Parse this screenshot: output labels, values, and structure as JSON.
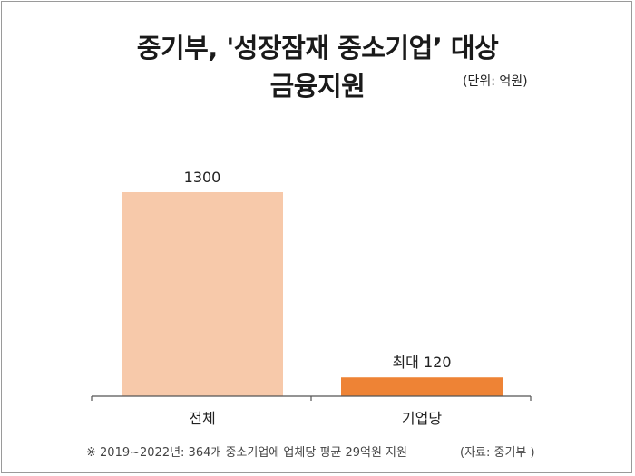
{
  "title_line1": "중기부, '성장잠재 중소기업’ 대상",
  "title_line2": "금융지원",
  "unit": "(단위: 억원)",
  "footnote": "※ 2019~2022년: 364개 중소기업에 업체당 평균 29억원 지원",
  "source": "(자료: 중기부 )",
  "colors": {
    "bar_total": "#f7c9aa",
    "bar_per_company": "#ee8335",
    "axis": "#555555"
  },
  "chart_data": {
    "type": "bar",
    "categories": [
      "전체",
      "기업당"
    ],
    "values": [
      1300,
      120
    ],
    "data_labels": [
      "1300",
      "최대 120"
    ],
    "ylim": [
      0,
      1300
    ],
    "grid": false,
    "legend": "none"
  }
}
